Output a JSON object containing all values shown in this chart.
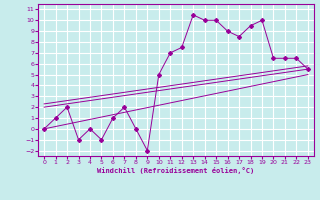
{
  "xlabel": "Windchill (Refroidissement éolien,°C)",
  "bg_color": "#c8ecec",
  "grid_color": "#ffffff",
  "line_color": "#990099",
  "xlim": [
    -0.5,
    23.5
  ],
  "ylim": [
    -2.5,
    11.5
  ],
  "xticks": [
    0,
    1,
    2,
    3,
    4,
    5,
    6,
    7,
    8,
    9,
    10,
    11,
    12,
    13,
    14,
    15,
    16,
    17,
    18,
    19,
    20,
    21,
    22,
    23
  ],
  "yticks": [
    -2,
    -1,
    0,
    1,
    2,
    3,
    4,
    5,
    6,
    7,
    8,
    9,
    10,
    11
  ],
  "jagged_x": [
    0,
    1,
    2,
    3,
    4,
    5,
    6,
    7,
    8,
    9,
    10,
    11,
    12,
    13,
    14,
    15,
    16,
    17,
    18,
    19,
    20,
    21,
    22,
    23
  ],
  "jagged_y": [
    0,
    1,
    2,
    -1,
    0,
    -1,
    1,
    2,
    0,
    -2,
    5,
    7,
    7.5,
    10.5,
    10,
    10,
    9,
    8.5,
    9.5,
    10,
    6.5,
    6.5,
    6.5,
    5.5
  ],
  "line1_x": [
    0,
    23
  ],
  "line1_y": [
    2.0,
    5.5
  ],
  "line2_x": [
    0,
    23
  ],
  "line2_y": [
    2.3,
    5.8
  ],
  "line3_x": [
    0,
    23
  ],
  "line3_y": [
    0.0,
    5.0
  ]
}
